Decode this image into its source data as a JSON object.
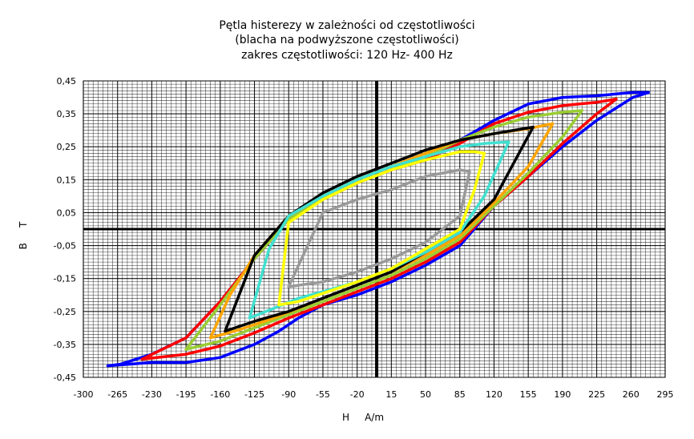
{
  "chart_data": {
    "type": "line",
    "title_lines": [
      "Pętla histerezy w zależności od częstotliwości",
      "(blacha na podwyższone częstotliwości)",
      "zakres częstotliwości: 120 Hz- 400 Hz"
    ],
    "xlabel": "H     A/m",
    "ylabel": "B     T",
    "xlim": [
      -300,
      295
    ],
    "ylim": [
      -0.45,
      0.45
    ],
    "xticks": [
      "-300",
      "-265",
      "-230",
      "-195",
      "-160",
      "-125",
      "-90",
      "-55",
      "-20",
      "15",
      "50",
      "85",
      "120",
      "155",
      "190",
      "225",
      "260",
      "295"
    ],
    "yticks": [
      "0,45",
      "0,35",
      "0,25",
      "0,15",
      "0,05",
      "-0,05",
      "-0,15",
      "-0,25",
      "-0,35",
      "-0,45"
    ],
    "grid": true,
    "legend": "none",
    "series": [
      {
        "color": "#0000ff",
        "x": [
          -275,
          -230,
          -195,
          -160,
          -125,
          -100,
          -80,
          -55,
          -20,
          15,
          50,
          85,
          120,
          155,
          190,
          225,
          262,
          278,
          262,
          225,
          190,
          155,
          120,
          85,
          70,
          50,
          15,
          -20,
          -55,
          -90,
          -125,
          -160,
          -195,
          -230,
          -262,
          -275
        ],
        "y": [
          -0.415,
          -0.405,
          -0.405,
          -0.39,
          -0.35,
          -0.31,
          -0.27,
          -0.23,
          -0.2,
          -0.16,
          -0.11,
          -0.05,
          0.07,
          0.16,
          0.25,
          0.33,
          0.4,
          0.415,
          0.415,
          0.405,
          0.4,
          0.38,
          0.33,
          0.27,
          0.24,
          0.21,
          0.18,
          0.14,
          0.09,
          0.03,
          -0.09,
          -0.22,
          -0.33,
          -0.38,
          -0.41,
          -0.415
        ]
      },
      {
        "color": "#ff0000",
        "x": [
          -240,
          -195,
          -160,
          -125,
          -90,
          -55,
          -20,
          15,
          50,
          85,
          120,
          155,
          190,
          225,
          245,
          225,
          190,
          155,
          120,
          85,
          50,
          15,
          -20,
          -55,
          -90,
          -125,
          -160,
          -195,
          -240
        ],
        "y": [
          -0.395,
          -0.38,
          -0.355,
          -0.315,
          -0.27,
          -0.23,
          -0.19,
          -0.15,
          -0.1,
          -0.04,
          0.07,
          0.16,
          0.26,
          0.35,
          0.395,
          0.385,
          0.375,
          0.355,
          0.32,
          0.26,
          0.21,
          0.18,
          0.14,
          0.09,
          0.03,
          -0.09,
          -0.22,
          -0.33,
          -0.395
        ]
      },
      {
        "color": "#9acd32",
        "x": [
          -195,
          -160,
          -125,
          -90,
          -55,
          -20,
          15,
          50,
          85,
          120,
          155,
          190,
          210,
          190,
          155,
          120,
          85,
          50,
          15,
          -20,
          -55,
          -90,
          -125,
          -160,
          -195
        ],
        "y": [
          -0.365,
          -0.34,
          -0.3,
          -0.26,
          -0.22,
          -0.18,
          -0.14,
          -0.09,
          -0.03,
          0.07,
          0.17,
          0.28,
          0.36,
          0.355,
          0.34,
          0.31,
          0.27,
          0.22,
          0.18,
          0.14,
          0.09,
          0.03,
          -0.09,
          -0.23,
          -0.365
        ]
      },
      {
        "color": "#ffa500",
        "x": [
          -170,
          -140,
          -110,
          -80,
          -55,
          -20,
          15,
          50,
          85,
          120,
          155,
          180,
          155,
          120,
          85,
          50,
          15,
          -20,
          -55,
          -90,
          -125,
          -150,
          -170
        ],
        "y": [
          -0.33,
          -0.305,
          -0.275,
          -0.24,
          -0.21,
          -0.17,
          -0.13,
          -0.08,
          -0.02,
          0.08,
          0.19,
          0.32,
          0.305,
          0.29,
          0.27,
          0.23,
          0.19,
          0.15,
          0.1,
          0.04,
          -0.08,
          -0.2,
          -0.33
        ]
      },
      {
        "color": "#000000",
        "x": [
          -155,
          -125,
          -90,
          -55,
          -20,
          15,
          50,
          85,
          120,
          160,
          120,
          85,
          50,
          15,
          -20,
          -55,
          -90,
          -125,
          -155
        ],
        "y": [
          -0.31,
          -0.28,
          -0.25,
          -0.21,
          -0.17,
          -0.13,
          -0.07,
          -0.01,
          0.09,
          0.31,
          0.29,
          0.27,
          0.24,
          0.2,
          0.16,
          0.11,
          0.04,
          -0.08,
          -0.31
        ]
      },
      {
        "color": "#40e0d0",
        "x": [
          -130,
          -105,
          -80,
          -55,
          -20,
          15,
          50,
          85,
          110,
          135,
          110,
          85,
          50,
          15,
          -20,
          -55,
          -90,
          -110,
          -130
        ],
        "y": [
          -0.27,
          -0.24,
          -0.21,
          -0.19,
          -0.16,
          -0.12,
          -0.07,
          -0.01,
          0.1,
          0.265,
          0.26,
          0.25,
          0.22,
          0.19,
          0.15,
          0.1,
          0.04,
          -0.06,
          -0.27
        ]
      },
      {
        "color": "#ffff00",
        "x": [
          -100,
          -80,
          -55,
          -20,
          15,
          50,
          85,
          100,
          110,
          100,
          85,
          50,
          15,
          -20,
          -55,
          -90,
          -100
        ],
        "y": [
          -0.23,
          -0.22,
          -0.195,
          -0.16,
          -0.12,
          -0.06,
          0.0,
          0.12,
          0.23,
          0.235,
          0.235,
          0.21,
          0.18,
          0.14,
          0.09,
          0.02,
          -0.23
        ]
      },
      {
        "color": "#999999",
        "x": [
          -90,
          -55,
          -20,
          15,
          50,
          85,
          95,
          85,
          50,
          15,
          -20,
          -55,
          -90
        ],
        "y": [
          -0.175,
          -0.16,
          -0.13,
          -0.09,
          -0.04,
          0.04,
          0.175,
          0.18,
          0.16,
          0.12,
          0.09,
          0.05,
          -0.175
        ]
      }
    ]
  }
}
